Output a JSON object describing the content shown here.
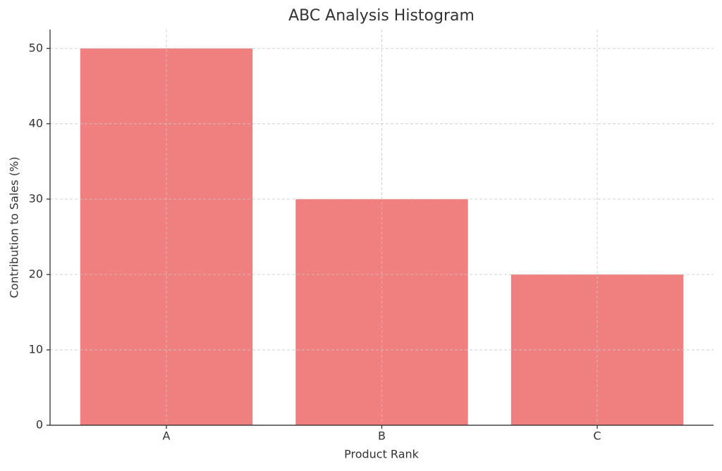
{
  "chart_data": {
    "type": "bar",
    "title": "ABC Analysis Histogram",
    "x_label": "Product Rank",
    "y_label": "Contribution to Sales (%)",
    "categories": [
      "A",
      "B",
      "C"
    ],
    "values": [
      50,
      30,
      20
    ],
    "color": "#f08080",
    "ylim": [
      0,
      52.5
    ],
    "yticks": [
      0,
      10,
      20,
      30,
      40,
      50
    ],
    "grid": true
  }
}
